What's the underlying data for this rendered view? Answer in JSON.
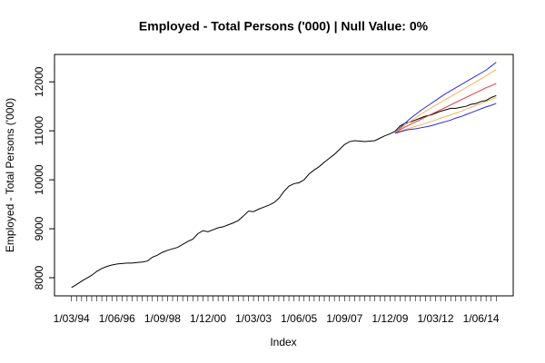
{
  "chart_data": {
    "type": "line",
    "title": "Employed - Total Persons ('000) | Null Value: 0%",
    "xlabel": "Index",
    "ylabel": "Employed - Total Persons ('000)",
    "categories": [
      "1/03/94",
      null,
      null,
      null,
      null,
      null,
      null,
      null,
      null,
      "1/06/96",
      null,
      null,
      null,
      null,
      null,
      null,
      null,
      null,
      "1/09/98",
      null,
      null,
      null,
      null,
      null,
      null,
      null,
      null,
      "1/12/00",
      null,
      null,
      null,
      null,
      null,
      null,
      null,
      null,
      "1/03/03",
      null,
      null,
      null,
      null,
      null,
      null,
      null,
      null,
      "1/06/05",
      null,
      null,
      null,
      null,
      null,
      null,
      null,
      null,
      "1/09/07",
      null,
      null,
      null,
      null,
      null,
      null,
      null,
      null,
      "1/12/09",
      null,
      null,
      null,
      null,
      null,
      null,
      null,
      null,
      "1/03/12",
      null,
      null,
      null,
      null,
      null,
      null,
      null,
      null,
      "1/06/14",
      null,
      null,
      null
    ],
    "series": [
      {
        "color": "#000000",
        "values": [
          7800,
          7860,
          7930,
          7990,
          8050,
          8130,
          8190,
          8230,
          8260,
          8280,
          8290,
          8300,
          8300,
          8310,
          8320,
          8340,
          8420,
          8460,
          8520,
          8560,
          8590,
          8620,
          8680,
          8740,
          8790,
          8900,
          8960,
          8940,
          8980,
          9020,
          9040,
          9080,
          9120,
          9170,
          9260,
          9360,
          9350,
          9400,
          9440,
          9480,
          9530,
          9620,
          9760,
          9870,
          9920,
          9940,
          10000,
          10120,
          10200,
          10270,
          10360,
          10440,
          10520,
          10620,
          10720,
          10780,
          10800,
          10790,
          10780,
          10790,
          10800,
          10850,
          10900,
          10940,
          10990,
          11100,
          11160,
          11180,
          11220,
          11260,
          11300,
          11320,
          11360,
          11400,
          11430,
          11460,
          11460,
          11480,
          11500,
          11540,
          11560,
          11600,
          11620,
          11680,
          11720
        ]
      },
      {
        "color": "#2a2ae0",
        "values": [
          null,
          null,
          null,
          null,
          null,
          null,
          null,
          null,
          null,
          null,
          null,
          null,
          null,
          null,
          null,
          null,
          null,
          null,
          null,
          null,
          null,
          null,
          null,
          null,
          null,
          null,
          null,
          null,
          null,
          null,
          null,
          null,
          null,
          null,
          null,
          null,
          null,
          null,
          null,
          null,
          null,
          null,
          null,
          null,
          null,
          null,
          null,
          null,
          null,
          null,
          null,
          null,
          null,
          null,
          null,
          null,
          null,
          null,
          null,
          null,
          null,
          null,
          null,
          null,
          10950,
          11060,
          11160,
          11250,
          11330,
          11410,
          11480,
          11550,
          11620,
          11690,
          11760,
          11820,
          11880,
          11940,
          12000,
          12060,
          12120,
          12180,
          12240,
          12320,
          12400
        ]
      },
      {
        "color": "#f2b45a",
        "values": [
          null,
          null,
          null,
          null,
          null,
          null,
          null,
          null,
          null,
          null,
          null,
          null,
          null,
          null,
          null,
          null,
          null,
          null,
          null,
          null,
          null,
          null,
          null,
          null,
          null,
          null,
          null,
          null,
          null,
          null,
          null,
          null,
          null,
          null,
          null,
          null,
          null,
          null,
          null,
          null,
          null,
          null,
          null,
          null,
          null,
          null,
          null,
          null,
          null,
          null,
          null,
          null,
          null,
          null,
          null,
          null,
          null,
          null,
          null,
          null,
          null,
          null,
          null,
          null,
          10950,
          11040,
          11120,
          11190,
          11260,
          11330,
          11400,
          11460,
          11520,
          11580,
          11640,
          11700,
          11760,
          11820,
          11880,
          11940,
          12000,
          12060,
          12120,
          12190,
          12250
        ]
      },
      {
        "color": "#dd3b3b",
        "values": [
          null,
          null,
          null,
          null,
          null,
          null,
          null,
          null,
          null,
          null,
          null,
          null,
          null,
          null,
          null,
          null,
          null,
          null,
          null,
          null,
          null,
          null,
          null,
          null,
          null,
          null,
          null,
          null,
          null,
          null,
          null,
          null,
          null,
          null,
          null,
          null,
          null,
          null,
          null,
          null,
          null,
          null,
          null,
          null,
          null,
          null,
          null,
          null,
          null,
          null,
          null,
          null,
          null,
          null,
          null,
          null,
          null,
          null,
          null,
          null,
          null,
          null,
          null,
          null,
          10950,
          11020,
          11080,
          11130,
          11180,
          11230,
          11280,
          11330,
          11380,
          11430,
          11480,
          11530,
          11580,
          11630,
          11680,
          11730,
          11780,
          11830,
          11880,
          11920,
          11970
        ]
      },
      {
        "color": "#f2b45a",
        "values": [
          null,
          null,
          null,
          null,
          null,
          null,
          null,
          null,
          null,
          null,
          null,
          null,
          null,
          null,
          null,
          null,
          null,
          null,
          null,
          null,
          null,
          null,
          null,
          null,
          null,
          null,
          null,
          null,
          null,
          null,
          null,
          null,
          null,
          null,
          null,
          null,
          null,
          null,
          null,
          null,
          null,
          null,
          null,
          null,
          null,
          null,
          null,
          null,
          null,
          null,
          null,
          null,
          null,
          null,
          null,
          null,
          null,
          null,
          null,
          null,
          null,
          null,
          null,
          null,
          10950,
          10990,
          11030,
          11060,
          11090,
          11120,
          11150,
          11190,
          11220,
          11260,
          11290,
          11330,
          11360,
          11400,
          11440,
          11480,
          11520,
          11560,
          11600,
          11640,
          11680
        ]
      },
      {
        "color": "#2a2ae0",
        "values": [
          null,
          null,
          null,
          null,
          null,
          null,
          null,
          null,
          null,
          null,
          null,
          null,
          null,
          null,
          null,
          null,
          null,
          null,
          null,
          null,
          null,
          null,
          null,
          null,
          null,
          null,
          null,
          null,
          null,
          null,
          null,
          null,
          null,
          null,
          null,
          null,
          null,
          null,
          null,
          null,
          null,
          null,
          null,
          null,
          null,
          null,
          null,
          null,
          null,
          null,
          null,
          null,
          null,
          null,
          null,
          null,
          null,
          null,
          null,
          null,
          null,
          null,
          null,
          null,
          10950,
          10980,
          11010,
          11030,
          11040,
          11060,
          11080,
          11100,
          11130,
          11160,
          11190,
          11220,
          11260,
          11290,
          11330,
          11370,
          11410,
          11450,
          11490,
          11520,
          11560
        ]
      }
    ],
    "ylim": [
      7630,
      12560
    ],
    "yticks": [
      8000,
      9000,
      10000,
      11000,
      12000
    ],
    "grid": false
  }
}
